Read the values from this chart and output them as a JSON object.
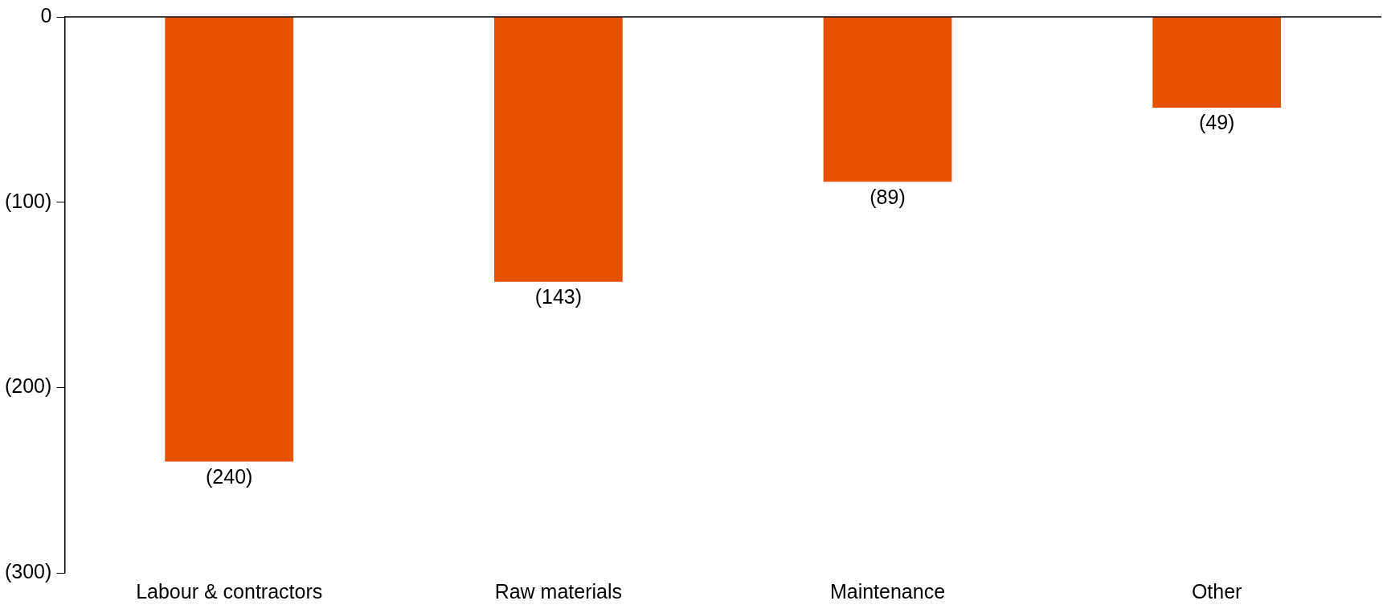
{
  "chart_data": {
    "type": "bar",
    "categories": [
      "Labour & contractors",
      "Raw materials",
      "Maintenance",
      "Other"
    ],
    "values": [
      -240,
      -143,
      -89,
      -49
    ],
    "color": "#e65100",
    "value_labels": [
      "(240)",
      "(143)",
      "(89)",
      "(49)"
    ],
    "ylim": [
      -300,
      0
    ],
    "yticks": [
      {
        "value": -300,
        "label": "(300)"
      },
      {
        "value": -200,
        "label": "(200)"
      },
      {
        "value": -100,
        "label": "(100)"
      },
      0
    ],
    "grid": false,
    "legend": false
  }
}
